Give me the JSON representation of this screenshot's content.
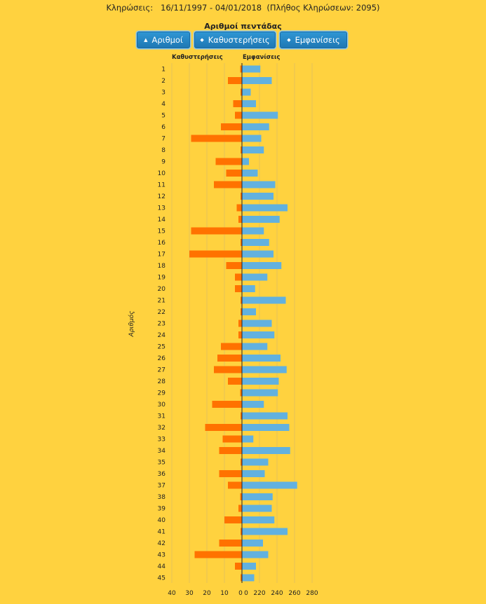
{
  "header": {
    "label": "Κληρώσεις:",
    "range": "16/11/1997 - 04/01/2018",
    "count": "(Πλήθος Κληρώσεων: 2095)"
  },
  "title": "Αριθμοί πεντάδας",
  "buttons": [
    {
      "label": "Αριθμοί",
      "icon": "caret-up-icon"
    },
    {
      "label": "Καθυστερήσεις",
      "icon": "sort-icon"
    },
    {
      "label": "Εμφανίσεις",
      "icon": "sort-icon"
    }
  ],
  "chart_data": {
    "type": "bar",
    "ylabel": "Αριθμός",
    "left_series": {
      "name": "Καθυστερήσεις",
      "color": "#FF7200",
      "ticks": [
        "40",
        "30",
        "20",
        "10",
        "0"
      ],
      "axis_max": 40,
      "values": [
        1,
        8,
        0,
        5,
        4,
        12,
        29,
        0,
        15,
        9,
        16,
        0,
        3,
        2,
        29,
        0,
        30,
        9,
        4,
        4,
        0,
        0,
        2,
        2,
        12,
        14,
        16,
        8,
        1,
        17,
        0,
        21,
        11,
        13,
        0,
        13,
        8,
        1,
        2,
        10,
        0,
        13,
        27,
        4,
        0
      ]
    },
    "right_series": {
      "name": "Εμφανίσεις",
      "color": "#62B1DF",
      "ticks": [
        "0",
        "220",
        "240",
        "260",
        "280"
      ],
      "axis_min": 200,
      "axis_max": 280,
      "values": [
        221,
        234,
        210,
        216,
        241,
        231,
        222,
        225,
        208,
        218,
        238,
        236,
        252,
        243,
        225,
        231,
        236,
        245,
        229,
        215,
        250,
        216,
        234,
        237,
        229,
        244,
        251,
        242,
        241,
        225,
        252,
        254,
        213,
        255,
        230,
        226,
        263,
        235,
        234,
        237,
        252,
        224,
        230,
        216,
        214
      ]
    },
    "categories": [
      "1",
      "2",
      "3",
      "4",
      "5",
      "6",
      "7",
      "8",
      "9",
      "10",
      "11",
      "12",
      "13",
      "14",
      "15",
      "16",
      "17",
      "18",
      "19",
      "20",
      "21",
      "22",
      "23",
      "24",
      "25",
      "26",
      "27",
      "28",
      "29",
      "30",
      "31",
      "32",
      "33",
      "34",
      "35",
      "36",
      "37",
      "38",
      "39",
      "40",
      "41",
      "42",
      "43",
      "44",
      "45"
    ],
    "grid": true
  }
}
